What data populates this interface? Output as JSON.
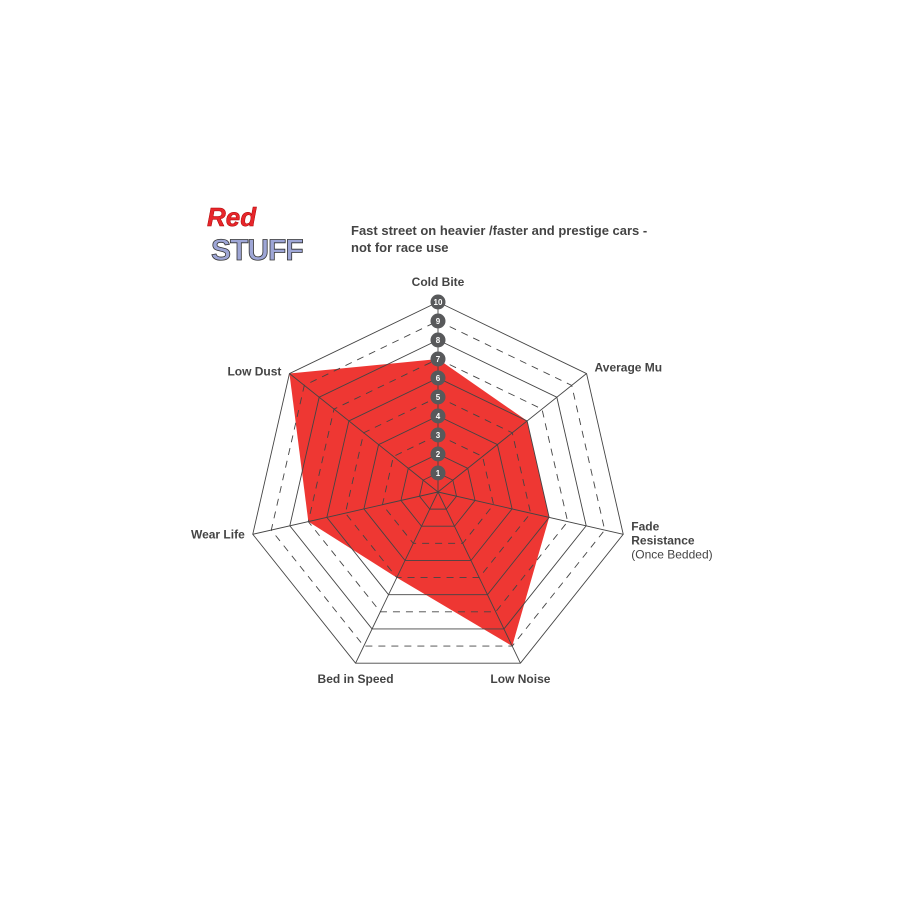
{
  "header": {
    "logo_text": [
      "Red",
      "STUFF"
    ],
    "subtitle_line1": "Fast street on heavier /faster and prestige cars -",
    "subtitle_line2": "not for race use"
  },
  "chart_data": {
    "type": "radar",
    "title": "",
    "axes": [
      "Cold Bite",
      "Average Mu",
      "Fade Resistance",
      "Low Noise",
      "Bed in Speed",
      "Wear Life",
      "Low Dust"
    ],
    "axis_sublabels": {
      "Fade Resistance": "(Once Bedded)"
    },
    "range": [
      0,
      10
    ],
    "ticks": [
      "1",
      "2",
      "3",
      "4",
      "5",
      "6",
      "7",
      "8",
      "9",
      "10"
    ],
    "series": [
      {
        "values": [
          7,
          6,
          6,
          9,
          5,
          7,
          10
        ],
        "color": "#ee3733"
      }
    ],
    "grid": true,
    "grid_color": "#444444",
    "tick_badge_color": "#58595b"
  }
}
